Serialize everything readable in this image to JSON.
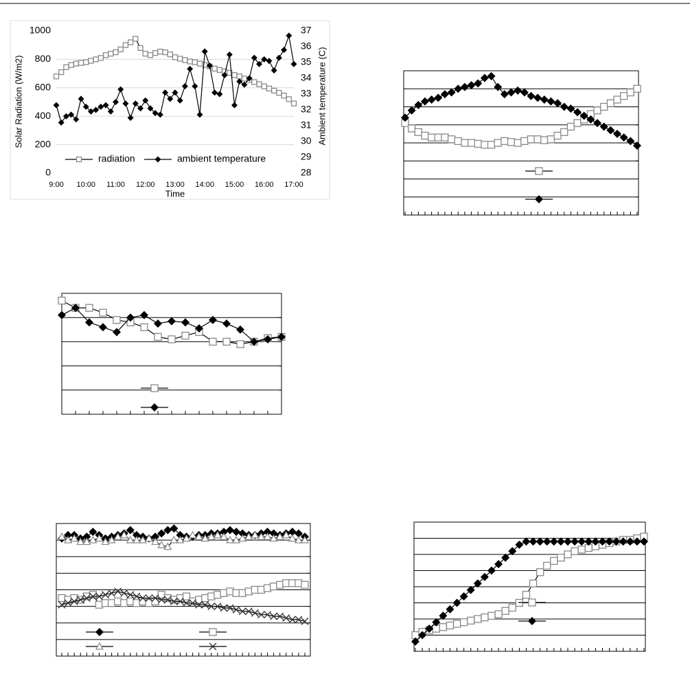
{
  "chart_data": [
    {
      "type": "line",
      "xlabel": "Time",
      "ylabel": "Solar Radiation (W/m2)",
      "y2label": "Ambient temperature (C)",
      "x": [
        540,
        550,
        560,
        570,
        580,
        590,
        600,
        610,
        620,
        630,
        640,
        650,
        660,
        670,
        680,
        690,
        700,
        710,
        720,
        730,
        740,
        750,
        760,
        770,
        780,
        790,
        800,
        810,
        820,
        830,
        840,
        850,
        860,
        870,
        880,
        890,
        900,
        910,
        920,
        930,
        940,
        950,
        960,
        970,
        980,
        990,
        1000,
        1010,
        1020
      ],
      "xlim": [
        540,
        1020
      ],
      "xticks": [
        {
          "value": 540,
          "label": "9:00"
        },
        {
          "value": 600,
          "label": "10:00"
        },
        {
          "value": 660,
          "label": "11:00"
        },
        {
          "value": 720,
          "label": "12:00"
        },
        {
          "value": 780,
          "label": "13:00"
        },
        {
          "value": 840,
          "label": "14:00"
        },
        {
          "value": 900,
          "label": "15:00"
        },
        {
          "value": 960,
          "label": "16:00"
        },
        {
          "value": 1020,
          "label": "17:00"
        }
      ],
      "ylim": [
        0,
        1000
      ],
      "yticks": [
        0,
        200,
        400,
        600,
        800,
        1000
      ],
      "y2lim": [
        28,
        37
      ],
      "y2ticks": [
        28,
        29,
        30,
        31,
        32,
        33,
        34,
        35,
        36,
        37
      ],
      "grid": true,
      "legend": "bottom",
      "frame": false,
      "tick_labels": true,
      "series": [
        {
          "name": "radiation",
          "color": "#888888",
          "marker": "square",
          "values": [
            680,
            710,
            745,
            760,
            770,
            775,
            780,
            790,
            800,
            810,
            830,
            840,
            850,
            870,
            900,
            920,
            945,
            880,
            840,
            830,
            845,
            855,
            850,
            835,
            815,
            805,
            795,
            785,
            780,
            770,
            760,
            750,
            735,
            725,
            715,
            705,
            690,
            680,
            665,
            655,
            640,
            625,
            610,
            595,
            580,
            565,
            545,
            520,
            490
          ]
        },
        {
          "name": "ambient temperature",
          "color": "#000000",
          "marker": "diamond",
          "axis": "y2",
          "values": [
            32.3,
            31.2,
            31.6,
            31.7,
            31.4,
            32.7,
            32.2,
            31.9,
            32.0,
            32.2,
            32.3,
            31.9,
            32.5,
            33.3,
            32.4,
            31.5,
            32.4,
            32.1,
            32.6,
            32.1,
            31.8,
            31.7,
            33.1,
            32.7,
            33.1,
            32.6,
            33.5,
            34.6,
            33.5,
            31.7,
            35.7,
            34.8,
            33.1,
            33.0,
            34.2,
            35.5,
            32.3,
            33.8,
            33.6,
            34.0,
            35.3,
            34.9,
            35.2,
            35.1,
            34.5,
            35.3,
            35.8,
            36.7,
            34.9
          ]
        }
      ]
    },
    {
      "type": "line",
      "ylim": [
        0,
        8
      ],
      "yticks": [
        0,
        1,
        2,
        3,
        4,
        5,
        6,
        7,
        8
      ],
      "grid": true,
      "frame": true,
      "tick_labels": false,
      "series": [
        {
          "color": "#888888",
          "marker": "square",
          "values": [
            5.1,
            4.8,
            4.6,
            4.4,
            4.3,
            4.3,
            4.3,
            4.2,
            4.1,
            4.0,
            4.0,
            3.95,
            3.9,
            3.9,
            4.0,
            4.1,
            4.05,
            4.0,
            4.1,
            4.2,
            4.2,
            4.15,
            4.2,
            4.4,
            4.6,
            4.9,
            5.1,
            5.3,
            5.6,
            5.8,
            6.0,
            6.2,
            6.4,
            6.6,
            6.8,
            7.0
          ]
        },
        {
          "color": "#000000",
          "marker": "diamond",
          "values": [
            5.4,
            5.8,
            6.1,
            6.3,
            6.4,
            6.5,
            6.7,
            6.8,
            7.0,
            7.1,
            7.2,
            7.3,
            7.6,
            7.7,
            7.1,
            6.7,
            6.8,
            6.9,
            6.8,
            6.6,
            6.5,
            6.4,
            6.3,
            6.2,
            6.0,
            5.9,
            5.7,
            5.5,
            5.3,
            5.1,
            4.9,
            4.7,
            4.5,
            4.3,
            4.1,
            3.85
          ]
        }
      ]
    },
    {
      "type": "line",
      "ylim": [
        0,
        5
      ],
      "yticks": [
        0,
        1,
        2,
        3,
        4,
        5
      ],
      "grid": true,
      "frame": true,
      "tick_labels": false,
      "series": [
        {
          "color": "#888888",
          "marker": "square",
          "values": [
            4.7,
            4.4,
            4.4,
            4.2,
            3.9,
            3.8,
            3.6,
            3.2,
            3.1,
            3.25,
            3.4,
            3.0,
            3.0,
            2.9,
            3.0,
            3.15,
            3.2
          ]
        },
        {
          "color": "#000000",
          "marker": "diamond",
          "values": [
            4.1,
            4.4,
            3.8,
            3.6,
            3.4,
            4.0,
            4.1,
            3.75,
            3.85,
            3.8,
            3.55,
            3.9,
            3.75,
            3.5,
            3.0,
            3.1,
            3.2
          ]
        }
      ]
    },
    {
      "type": "line",
      "ylim": [
        0,
        8
      ],
      "yticks": [
        0,
        1,
        2,
        3,
        4,
        5,
        6,
        7,
        8
      ],
      "grid": true,
      "frame": true,
      "tick_labels": false,
      "series": [
        {
          "color": "#000000",
          "marker": "diamond",
          "values": [
            7.1,
            7.3,
            7.3,
            7.1,
            7.2,
            7.5,
            7.3,
            7.1,
            7.2,
            7.3,
            7.4,
            7.6,
            7.3,
            7.2,
            7.1,
            7.2,
            7.4,
            7.6,
            7.7,
            7.3,
            7.2,
            7.2,
            7.3,
            7.3,
            7.4,
            7.4,
            7.5,
            7.6,
            7.5,
            7.4,
            7.3,
            7.3,
            7.4,
            7.5,
            7.4,
            7.3,
            7.4,
            7.5,
            7.4,
            7.2
          ]
        },
        {
          "color": "#888888",
          "marker": "triangle",
          "values": [
            7.2,
            7.0,
            7.1,
            6.9,
            6.9,
            7.0,
            7.1,
            6.9,
            7.0,
            7.2,
            7.3,
            7.0,
            7.0,
            7.0,
            7.1,
            6.9,
            6.7,
            6.6,
            7.0,
            7.0,
            7.1,
            7.3,
            7.2,
            7.1,
            7.2,
            7.3,
            7.2,
            7.0,
            7.0,
            7.1,
            7.2,
            7.3,
            7.2,
            7.2,
            7.1,
            7.2,
            7.3,
            7.1,
            7.0,
            7.0
          ]
        },
        {
          "color": "#888888",
          "marker": "square",
          "values": [
            3.5,
            3.4,
            3.5,
            3.4,
            3.6,
            3.7,
            3.1,
            3.2,
            3.2,
            3.3,
            3.2,
            3.3,
            3.2,
            3.3,
            3.2,
            3.3,
            3.7,
            3.5,
            3.4,
            3.5,
            3.6,
            3.3,
            3.4,
            3.5,
            3.6,
            3.7,
            3.8,
            3.9,
            3.8,
            3.8,
            3.9,
            4.0,
            4.0,
            4.1,
            4.2,
            4.3,
            4.4,
            4.4,
            4.4,
            4.3
          ]
        },
        {
          "color": "#333333",
          "marker": "x",
          "values": [
            3.1,
            3.2,
            3.3,
            3.4,
            3.5,
            3.6,
            3.6,
            3.7,
            3.8,
            3.9,
            3.8,
            3.7,
            3.6,
            3.5,
            3.5,
            3.5,
            3.4,
            3.4,
            3.3,
            3.3,
            3.2,
            3.2,
            3.1,
            3.1,
            3.0,
            3.0,
            2.9,
            2.9,
            2.8,
            2.7,
            2.7,
            2.6,
            2.5,
            2.5,
            2.4,
            2.4,
            2.3,
            2.2,
            2.2,
            2.1
          ]
        }
      ]
    },
    {
      "type": "line",
      "ylim": [
        0,
        8
      ],
      "yticks": [
        0,
        1,
        2,
        3,
        4,
        5,
        6,
        7,
        8
      ],
      "grid": true,
      "frame": true,
      "tick_labels": false,
      "series": [
        {
          "color": "#888888",
          "marker": "square",
          "values": [
            1.0,
            1.2,
            1.3,
            1.4,
            1.5,
            1.6,
            1.7,
            1.8,
            1.9,
            2.0,
            2.1,
            2.2,
            2.3,
            2.5,
            2.7,
            3.0,
            3.5,
            4.2,
            4.9,
            5.3,
            5.6,
            5.8,
            6.0,
            6.2,
            6.3,
            6.4,
            6.5,
            6.6,
            6.7,
            6.8,
            6.9,
            6.9,
            7.0,
            7.1
          ]
        },
        {
          "color": "#000000",
          "marker": "diamond",
          "values": [
            0.6,
            1.0,
            1.4,
            1.8,
            2.2,
            2.6,
            3.0,
            3.4,
            3.8,
            4.2,
            4.6,
            5.0,
            5.4,
            5.8,
            6.2,
            6.6,
            6.8,
            6.8,
            6.8,
            6.8,
            6.8,
            6.8,
            6.8,
            6.8,
            6.8,
            6.8,
            6.8,
            6.8,
            6.8,
            6.8,
            6.8,
            6.8,
            6.8,
            6.8
          ]
        }
      ]
    }
  ]
}
